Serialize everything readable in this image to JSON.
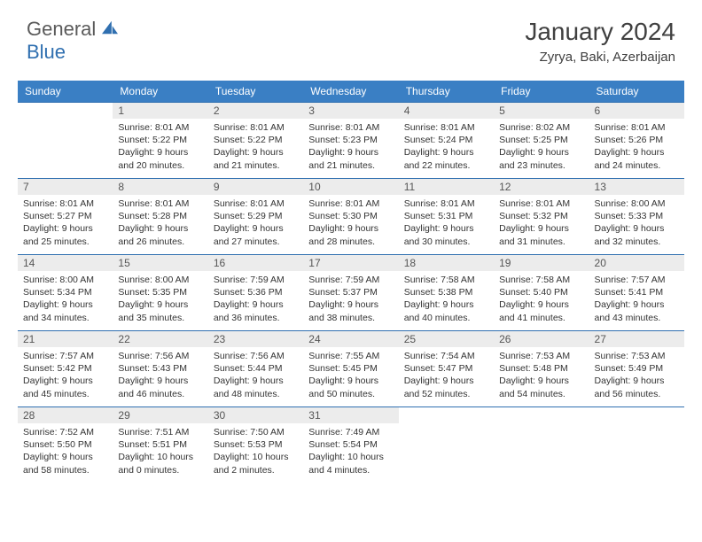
{
  "brand": {
    "part1": "General",
    "part2": "Blue",
    "color1": "#5a5a5a",
    "color2": "#2f6fb0"
  },
  "title": "January 2024",
  "location": "Zyrya, Baki, Azerbaijan",
  "colors": {
    "header_bg": "#3a7fc4",
    "header_text": "#ffffff",
    "row_border": "#2f6fb0",
    "daynum_bg": "#ececec",
    "text": "#333333"
  },
  "weekdays": [
    "Sunday",
    "Monday",
    "Tuesday",
    "Wednesday",
    "Thursday",
    "Friday",
    "Saturday"
  ],
  "weeks": [
    [
      null,
      {
        "n": "1",
        "sr": "8:01 AM",
        "ss": "5:22 PM",
        "dl": "9 hours and 20 minutes."
      },
      {
        "n": "2",
        "sr": "8:01 AM",
        "ss": "5:22 PM",
        "dl": "9 hours and 21 minutes."
      },
      {
        "n": "3",
        "sr": "8:01 AM",
        "ss": "5:23 PM",
        "dl": "9 hours and 21 minutes."
      },
      {
        "n": "4",
        "sr": "8:01 AM",
        "ss": "5:24 PM",
        "dl": "9 hours and 22 minutes."
      },
      {
        "n": "5",
        "sr": "8:02 AM",
        "ss": "5:25 PM",
        "dl": "9 hours and 23 minutes."
      },
      {
        "n": "6",
        "sr": "8:01 AM",
        "ss": "5:26 PM",
        "dl": "9 hours and 24 minutes."
      }
    ],
    [
      {
        "n": "7",
        "sr": "8:01 AM",
        "ss": "5:27 PM",
        "dl": "9 hours and 25 minutes."
      },
      {
        "n": "8",
        "sr": "8:01 AM",
        "ss": "5:28 PM",
        "dl": "9 hours and 26 minutes."
      },
      {
        "n": "9",
        "sr": "8:01 AM",
        "ss": "5:29 PM",
        "dl": "9 hours and 27 minutes."
      },
      {
        "n": "10",
        "sr": "8:01 AM",
        "ss": "5:30 PM",
        "dl": "9 hours and 28 minutes."
      },
      {
        "n": "11",
        "sr": "8:01 AM",
        "ss": "5:31 PM",
        "dl": "9 hours and 30 minutes."
      },
      {
        "n": "12",
        "sr": "8:01 AM",
        "ss": "5:32 PM",
        "dl": "9 hours and 31 minutes."
      },
      {
        "n": "13",
        "sr": "8:00 AM",
        "ss": "5:33 PM",
        "dl": "9 hours and 32 minutes."
      }
    ],
    [
      {
        "n": "14",
        "sr": "8:00 AM",
        "ss": "5:34 PM",
        "dl": "9 hours and 34 minutes."
      },
      {
        "n": "15",
        "sr": "8:00 AM",
        "ss": "5:35 PM",
        "dl": "9 hours and 35 minutes."
      },
      {
        "n": "16",
        "sr": "7:59 AM",
        "ss": "5:36 PM",
        "dl": "9 hours and 36 minutes."
      },
      {
        "n": "17",
        "sr": "7:59 AM",
        "ss": "5:37 PM",
        "dl": "9 hours and 38 minutes."
      },
      {
        "n": "18",
        "sr": "7:58 AM",
        "ss": "5:38 PM",
        "dl": "9 hours and 40 minutes."
      },
      {
        "n": "19",
        "sr": "7:58 AM",
        "ss": "5:40 PM",
        "dl": "9 hours and 41 minutes."
      },
      {
        "n": "20",
        "sr": "7:57 AM",
        "ss": "5:41 PM",
        "dl": "9 hours and 43 minutes."
      }
    ],
    [
      {
        "n": "21",
        "sr": "7:57 AM",
        "ss": "5:42 PM",
        "dl": "9 hours and 45 minutes."
      },
      {
        "n": "22",
        "sr": "7:56 AM",
        "ss": "5:43 PM",
        "dl": "9 hours and 46 minutes."
      },
      {
        "n": "23",
        "sr": "7:56 AM",
        "ss": "5:44 PM",
        "dl": "9 hours and 48 minutes."
      },
      {
        "n": "24",
        "sr": "7:55 AM",
        "ss": "5:45 PM",
        "dl": "9 hours and 50 minutes."
      },
      {
        "n": "25",
        "sr": "7:54 AM",
        "ss": "5:47 PM",
        "dl": "9 hours and 52 minutes."
      },
      {
        "n": "26",
        "sr": "7:53 AM",
        "ss": "5:48 PM",
        "dl": "9 hours and 54 minutes."
      },
      {
        "n": "27",
        "sr": "7:53 AM",
        "ss": "5:49 PM",
        "dl": "9 hours and 56 minutes."
      }
    ],
    [
      {
        "n": "28",
        "sr": "7:52 AM",
        "ss": "5:50 PM",
        "dl": "9 hours and 58 minutes."
      },
      {
        "n": "29",
        "sr": "7:51 AM",
        "ss": "5:51 PM",
        "dl": "10 hours and 0 minutes."
      },
      {
        "n": "30",
        "sr": "7:50 AM",
        "ss": "5:53 PM",
        "dl": "10 hours and 2 minutes."
      },
      {
        "n": "31",
        "sr": "7:49 AM",
        "ss": "5:54 PM",
        "dl": "10 hours and 4 minutes."
      },
      null,
      null,
      null
    ]
  ],
  "labels": {
    "sunrise": "Sunrise: ",
    "sunset": "Sunset: ",
    "daylight": "Daylight: "
  }
}
